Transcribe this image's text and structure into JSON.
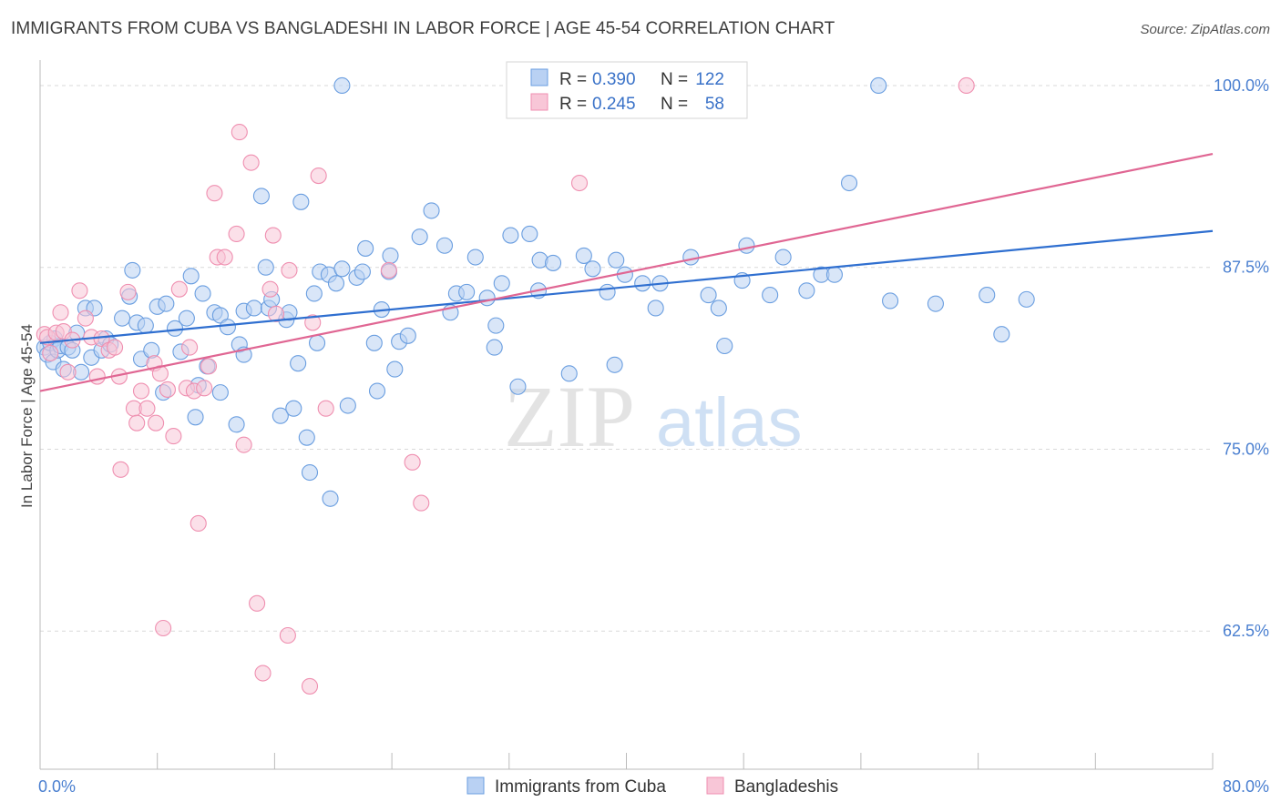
{
  "title": "IMMIGRANTS FROM CUBA VS BANGLADESHI IN LABOR FORCE | AGE 45-54 CORRELATION CHART",
  "source": "Source: ZipAtlas.com",
  "watermark": {
    "zip": "ZIP",
    "atlas": "atlas"
  },
  "chart_data": {
    "type": "scatter",
    "ylabel": "In Labor Force | Age 45-54",
    "xlim": [
      0,
      80
    ],
    "ylim": [
      53,
      101.5
    ],
    "x_tick_labels": [
      "0.0%",
      "80.0%"
    ],
    "y_ticks": [
      {
        "value": 100.0,
        "label": "100.0%"
      },
      {
        "value": 87.5,
        "label": "87.5%"
      },
      {
        "value": 75.0,
        "label": "75.0%"
      },
      {
        "value": 62.5,
        "label": "62.5%"
      }
    ],
    "legend_top": [
      {
        "r_label": "R = ",
        "r": "0.390",
        "n_label": "N = ",
        "n": "122"
      },
      {
        "r_label": "R = ",
        "r": "0.245",
        "n_label": "N = ",
        "n": "58"
      }
    ],
    "series": [
      {
        "name": "Immigrants from Cuba",
        "color": "#6a9ee0",
        "fill": "#b9d1f3",
        "trend": {
          "x": [
            0,
            80
          ],
          "y": [
            82.3,
            90.0
          ]
        },
        "points": [
          [
            0.3,
            82.0
          ],
          [
            0.5,
            81.5
          ],
          [
            0.7,
            82.3
          ],
          [
            0.9,
            81.0
          ],
          [
            1.0,
            82.6
          ],
          [
            1.2,
            81.8
          ],
          [
            1.4,
            82.1
          ],
          [
            1.6,
            80.5
          ],
          [
            1.9,
            82.0
          ],
          [
            2.2,
            81.8
          ],
          [
            2.5,
            83.0
          ],
          [
            2.8,
            80.3
          ],
          [
            3.1,
            84.7
          ],
          [
            3.5,
            81.3
          ],
          [
            3.7,
            84.7
          ],
          [
            4.2,
            81.8
          ],
          [
            4.5,
            82.6
          ],
          [
            4.8,
            82.2
          ],
          [
            5.6,
            84.0
          ],
          [
            6.1,
            85.5
          ],
          [
            6.3,
            87.3
          ],
          [
            6.6,
            83.7
          ],
          [
            6.9,
            81.2
          ],
          [
            7.2,
            83.5
          ],
          [
            7.6,
            81.8
          ],
          [
            8.0,
            84.8
          ],
          [
            8.4,
            78.9
          ],
          [
            8.6,
            85.0
          ],
          [
            9.2,
            83.3
          ],
          [
            9.6,
            81.7
          ],
          [
            10.0,
            84.0
          ],
          [
            10.3,
            86.9
          ],
          [
            10.6,
            77.2
          ],
          [
            10.8,
            79.4
          ],
          [
            11.1,
            85.7
          ],
          [
            11.4,
            80.7
          ],
          [
            11.9,
            84.4
          ],
          [
            12.3,
            84.2
          ],
          [
            12.3,
            78.9
          ],
          [
            12.8,
            83.4
          ],
          [
            13.4,
            76.7
          ],
          [
            13.6,
            82.2
          ],
          [
            13.9,
            81.5
          ],
          [
            13.9,
            84.5
          ],
          [
            14.6,
            84.7
          ],
          [
            15.1,
            92.4
          ],
          [
            15.4,
            87.5
          ],
          [
            15.6,
            84.7
          ],
          [
            15.8,
            85.3
          ],
          [
            16.4,
            77.3
          ],
          [
            16.8,
            83.9
          ],
          [
            17.0,
            84.4
          ],
          [
            17.3,
            77.8
          ],
          [
            17.6,
            80.9
          ],
          [
            17.8,
            92.0
          ],
          [
            18.2,
            75.8
          ],
          [
            18.4,
            73.4
          ],
          [
            18.7,
            85.7
          ],
          [
            18.9,
            82.3
          ],
          [
            19.1,
            87.2
          ],
          [
            19.7,
            87.0
          ],
          [
            19.8,
            71.6
          ],
          [
            20.2,
            86.4
          ],
          [
            20.6,
            87.4
          ],
          [
            20.6,
            100.0
          ],
          [
            21.0,
            78.0
          ],
          [
            21.6,
            86.8
          ],
          [
            22.0,
            87.2
          ],
          [
            22.2,
            88.8
          ],
          [
            22.8,
            82.3
          ],
          [
            23.0,
            79.0
          ],
          [
            23.3,
            84.6
          ],
          [
            23.8,
            87.2
          ],
          [
            23.9,
            88.3
          ],
          [
            24.2,
            80.5
          ],
          [
            24.5,
            82.4
          ],
          [
            25.1,
            82.8
          ],
          [
            25.9,
            89.6
          ],
          [
            26.7,
            91.4
          ],
          [
            27.6,
            89.0
          ],
          [
            28.0,
            84.4
          ],
          [
            28.4,
            85.7
          ],
          [
            29.1,
            85.8
          ],
          [
            29.7,
            88.2
          ],
          [
            30.5,
            85.4
          ],
          [
            31.0,
            82.0
          ],
          [
            31.1,
            83.5
          ],
          [
            31.5,
            86.4
          ],
          [
            32.1,
            89.7
          ],
          [
            32.6,
            79.3
          ],
          [
            33.4,
            89.8
          ],
          [
            34.0,
            85.9
          ],
          [
            34.1,
            88.0
          ],
          [
            35.0,
            87.8
          ],
          [
            36.1,
            80.2
          ],
          [
            37.1,
            88.3
          ],
          [
            37.7,
            87.4
          ],
          [
            38.7,
            85.8
          ],
          [
            39.2,
            80.8
          ],
          [
            39.3,
            88.0
          ],
          [
            39.9,
            87.0
          ],
          [
            41.1,
            86.4
          ],
          [
            42.0,
            84.7
          ],
          [
            42.3,
            86.4
          ],
          [
            44.4,
            88.2
          ],
          [
            45.6,
            85.6
          ],
          [
            46.3,
            84.7
          ],
          [
            46.7,
            82.1
          ],
          [
            47.9,
            86.6
          ],
          [
            48.2,
            89.0
          ],
          [
            49.8,
            85.6
          ],
          [
            50.7,
            88.2
          ],
          [
            52.3,
            85.9
          ],
          [
            53.3,
            87.0
          ],
          [
            54.2,
            87.0
          ],
          [
            55.2,
            93.3
          ],
          [
            57.2,
            100.0
          ],
          [
            58.0,
            85.2
          ],
          [
            61.1,
            85.0
          ],
          [
            64.6,
            85.6
          ],
          [
            65.6,
            82.9
          ],
          [
            67.3,
            85.3
          ]
        ]
      },
      {
        "name": "Bangladeshis",
        "color": "#ef8fb0",
        "fill": "#f8c6d7",
        "trend": {
          "x": [
            0,
            80
          ],
          "y": [
            79.0,
            95.3
          ]
        },
        "points": [
          [
            0.3,
            82.9
          ],
          [
            0.5,
            82.7
          ],
          [
            0.7,
            81.6
          ],
          [
            1.1,
            83.0
          ],
          [
            1.4,
            84.4
          ],
          [
            1.6,
            83.1
          ],
          [
            1.9,
            80.3
          ],
          [
            2.2,
            82.5
          ],
          [
            2.7,
            85.9
          ],
          [
            3.1,
            84.0
          ],
          [
            3.5,
            82.7
          ],
          [
            3.9,
            80.0
          ],
          [
            4.2,
            82.6
          ],
          [
            4.7,
            81.8
          ],
          [
            5.1,
            82.0
          ],
          [
            5.4,
            80.0
          ],
          [
            5.5,
            73.6
          ],
          [
            6.0,
            85.8
          ],
          [
            6.4,
            77.8
          ],
          [
            6.6,
            76.8
          ],
          [
            6.9,
            79.0
          ],
          [
            7.3,
            77.8
          ],
          [
            7.8,
            80.9
          ],
          [
            7.9,
            76.8
          ],
          [
            8.2,
            80.2
          ],
          [
            8.4,
            62.7
          ],
          [
            8.7,
            79.1
          ],
          [
            9.1,
            75.9
          ],
          [
            9.5,
            86.0
          ],
          [
            10.0,
            79.2
          ],
          [
            10.2,
            82.0
          ],
          [
            10.5,
            79.0
          ],
          [
            10.8,
            69.9
          ],
          [
            11.2,
            79.2
          ],
          [
            11.5,
            80.7
          ],
          [
            11.9,
            92.6
          ],
          [
            12.1,
            88.2
          ],
          [
            12.6,
            88.2
          ],
          [
            13.4,
            89.8
          ],
          [
            13.6,
            96.8
          ],
          [
            13.9,
            75.3
          ],
          [
            14.4,
            94.7
          ],
          [
            14.8,
            64.4
          ],
          [
            15.2,
            59.6
          ],
          [
            15.7,
            86.0
          ],
          [
            15.9,
            89.7
          ],
          [
            16.1,
            84.3
          ],
          [
            16.9,
            62.2
          ],
          [
            17.0,
            87.3
          ],
          [
            18.4,
            58.7
          ],
          [
            18.6,
            83.7
          ],
          [
            19.0,
            93.8
          ],
          [
            19.5,
            77.8
          ],
          [
            23.8,
            87.3
          ],
          [
            25.4,
            74.1
          ],
          [
            26.0,
            71.3
          ],
          [
            36.8,
            93.3
          ],
          [
            63.2,
            100.0
          ]
        ]
      }
    ]
  }
}
